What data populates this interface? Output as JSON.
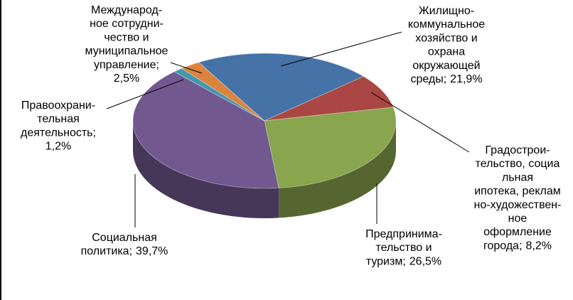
{
  "chart_data": {
    "type": "pie3d",
    "categories": [
      [
        "Жилищно-",
        "коммунальное",
        "хозяйство и",
        "охрана",
        "окружающей",
        "среды;"
      ],
      [
        "Градострои-",
        "тельство, социа",
        "льная",
        "ипотека, реклам",
        "но-художествен-",
        "ное",
        "оформление",
        "города;"
      ],
      [
        "Предпринима-",
        "тельство и",
        "туризм;"
      ],
      [
        "Социальная",
        "политика;"
      ],
      [
        "Правоохрани-",
        "тельная",
        "деятельность;"
      ],
      [
        "Международ-",
        "ное сотрудни-",
        "чество и",
        "муниципальное",
        "управление;"
      ]
    ],
    "values": [
      21.9,
      8.2,
      26.5,
      39.7,
      1.2,
      2.5
    ],
    "value_labels": [
      "21,9%",
      "8,2%",
      "26,5%",
      "39,7%",
      "1,2%",
      "2,5%"
    ],
    "colors": [
      "#4572a7",
      "#aa4643",
      "#89a54e",
      "#71588f",
      "#4198af",
      "#db843d"
    ]
  }
}
